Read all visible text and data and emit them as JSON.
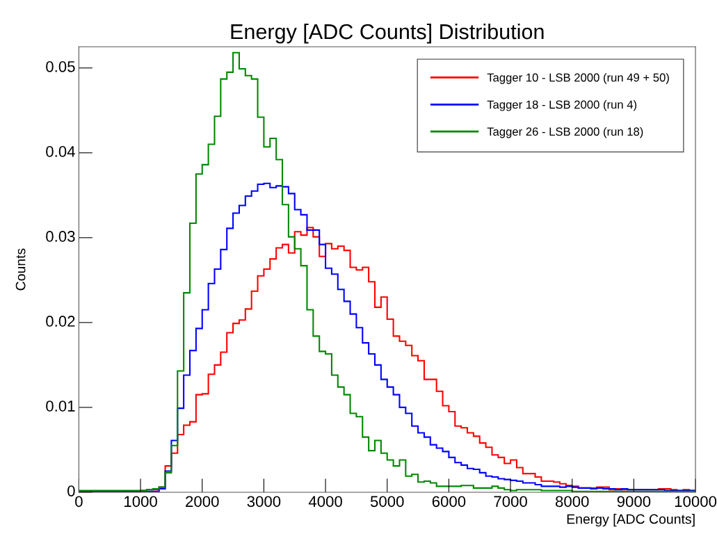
{
  "chart_data": {
    "type": "histogram",
    "title": "Energy [ADC Counts] Distribution",
    "xlabel": "Energy [ADC Counts]",
    "ylabel": "Counts",
    "bins": [
      0,
      100,
      200,
      300,
      400,
      500,
      600,
      700,
      800,
      900,
      1000,
      1100,
      1200,
      1300,
      1400,
      1500,
      1600,
      1700,
      1800,
      1900,
      2000,
      2100,
      2200,
      2300,
      2400,
      2500,
      2600,
      2700,
      2800,
      2900,
      3000,
      3100,
      3200,
      3300,
      3400,
      3500,
      3600,
      3700,
      3800,
      3900,
      4000,
      4100,
      4200,
      4300,
      4400,
      4500,
      4600,
      4700,
      4800,
      4900,
      5000,
      5100,
      5200,
      5300,
      5400,
      5500,
      5600,
      5700,
      5800,
      5900,
      6000,
      6100,
      6200,
      6300,
      6400,
      6500,
      6600,
      6700,
      6800,
      6900,
      7000,
      7100,
      7200,
      7300,
      7400,
      7500,
      7600,
      7700,
      7800,
      7900,
      8000,
      8100,
      8200,
      8300,
      8400,
      8500,
      8600,
      8700,
      8800,
      8900,
      9000,
      9100,
      9200,
      9300,
      9400,
      9500,
      9600,
      9700,
      9800,
      9900,
      10000
    ],
    "series": [
      {
        "name": "Tagger 10 - LSB 2000 (run 49 + 50)",
        "color": "#ff0000",
        "values": [
          0.0001,
          0.0001,
          0.0001,
          0.0001,
          0.0001,
          0.0001,
          0.0001,
          0.0001,
          0.0001,
          0.0001,
          0.0002,
          0.0003,
          0.0003,
          0.0006,
          0.0031,
          0.0046,
          0.0068,
          0.0079,
          0.0083,
          0.0115,
          0.0116,
          0.0139,
          0.015,
          0.0165,
          0.0188,
          0.0199,
          0.0203,
          0.0216,
          0.0237,
          0.0255,
          0.0263,
          0.0275,
          0.0288,
          0.0292,
          0.0282,
          0.0307,
          0.0303,
          0.0312,
          0.0301,
          0.0278,
          0.0293,
          0.0287,
          0.029,
          0.0285,
          0.0265,
          0.0262,
          0.0265,
          0.0248,
          0.0218,
          0.023,
          0.0204,
          0.0184,
          0.0178,
          0.0173,
          0.0161,
          0.0155,
          0.0133,
          0.0133,
          0.0119,
          0.0102,
          0.0095,
          0.0078,
          0.0076,
          0.007,
          0.0066,
          0.0058,
          0.0053,
          0.0044,
          0.0041,
          0.0034,
          0.0038,
          0.0029,
          0.0022,
          0.0022,
          0.0018,
          0.0013,
          0.0013,
          0.0012,
          0.001,
          0.0008,
          0.0007,
          0.0005,
          0.0005,
          0.0005,
          0.0006,
          0.0006,
          0.0003,
          0.0004,
          0.0003,
          0.0003,
          0.0003,
          0.0003,
          0.0003,
          0.0003,
          0.0004,
          0.0004,
          0.0003,
          0.0002,
          0.0003,
          0.0002
        ]
      },
      {
        "name": "Tagger 18 - LSB 2000 (run 4)",
        "color": "#0000ff",
        "values": [
          0.0001,
          0.0001,
          0.0001,
          0.0001,
          0.0001,
          0.0001,
          0.0001,
          0.0001,
          0.0001,
          0.0001,
          0.0001,
          0.0001,
          0.0001,
          0.0004,
          0.0025,
          0.0061,
          0.0099,
          0.0138,
          0.0167,
          0.0193,
          0.0215,
          0.0246,
          0.0263,
          0.0286,
          0.0311,
          0.0329,
          0.0338,
          0.0349,
          0.0355,
          0.0363,
          0.0364,
          0.0359,
          0.0361,
          0.036,
          0.0352,
          0.0333,
          0.0327,
          0.0309,
          0.0309,
          0.0292,
          0.0264,
          0.0257,
          0.0239,
          0.0225,
          0.021,
          0.0194,
          0.0176,
          0.0163,
          0.015,
          0.0133,
          0.0124,
          0.0115,
          0.01,
          0.0093,
          0.0078,
          0.007,
          0.0065,
          0.0056,
          0.0052,
          0.0048,
          0.0041,
          0.0035,
          0.0032,
          0.0028,
          0.0027,
          0.0023,
          0.0019,
          0.0018,
          0.0016,
          0.0015,
          0.0014,
          0.0013,
          0.0011,
          0.0011,
          0.0009,
          0.0007,
          0.0007,
          0.0007,
          0.0006,
          0.0007,
          0.0006,
          0.0005,
          0.0005,
          0.0004,
          0.0005,
          0.0004,
          0.0004,
          0.0003,
          0.0004,
          0.0003,
          0.0003,
          0.0003,
          0.0003,
          0.0003,
          0.0003,
          0.0002,
          0.0002,
          0.0002,
          0.0002,
          0.0002
        ]
      },
      {
        "name": "Tagger 26 - LSB 2000 (run 18)",
        "color": "#008800",
        "values": [
          0.0002,
          0.0002,
          0.0002,
          0.0002,
          0.0002,
          0.0002,
          0.0002,
          0.0002,
          0.0002,
          0.0002,
          0.0002,
          0.0003,
          0.0004,
          0.0006,
          0.0023,
          0.0055,
          0.0143,
          0.0235,
          0.0317,
          0.0375,
          0.0386,
          0.041,
          0.0443,
          0.0487,
          0.0495,
          0.0518,
          0.0499,
          0.0491,
          0.0487,
          0.0442,
          0.0407,
          0.0417,
          0.0392,
          0.0339,
          0.0301,
          0.0287,
          0.0267,
          0.0215,
          0.0184,
          0.0166,
          0.0163,
          0.0138,
          0.0124,
          0.0115,
          0.0093,
          0.0089,
          0.0065,
          0.0049,
          0.0061,
          0.0046,
          0.0038,
          0.0031,
          0.0038,
          0.0019,
          0.0021,
          0.0012,
          0.0013,
          0.0011,
          0.0007,
          0.0007,
          0.0007,
          0.0007,
          0.0008,
          0.0008,
          0.0005,
          0.0005,
          0.0005,
          0.0007,
          0.0005,
          0.0003,
          0.0002,
          0.0003,
          0.0003,
          0.0003,
          0.0003,
          0.0002,
          0.0002,
          0.0002,
          0.0002,
          0.0002,
          0.0001,
          0.0001,
          0.0001,
          0.0001,
          0.0001,
          0.0001,
          0.0001,
          0.0001,
          0.0001,
          0.0001,
          0.0001,
          0.0001,
          0.0001,
          0.0001,
          0.0001,
          0.0001,
          0.0001,
          0.0001,
          0.0001,
          0.0001
        ]
      }
    ],
    "xlim": [
      0,
      10000
    ],
    "xticks": [
      0,
      1000,
      2000,
      3000,
      4000,
      5000,
      6000,
      7000,
      8000,
      9000,
      10000
    ],
    "ylim": [
      0,
      0.0525
    ],
    "yticks": [
      0,
      0.01,
      0.02,
      0.03,
      0.04,
      0.05
    ],
    "legend": "top right",
    "grid": false
  }
}
